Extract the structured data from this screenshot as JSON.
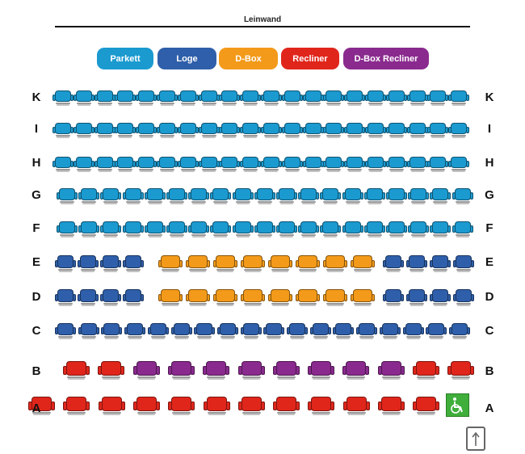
{
  "screen": {
    "label": "Leinwand"
  },
  "legend": [
    {
      "label": "Parkett",
      "color": "#1b9ad0"
    },
    {
      "label": "Loge",
      "color": "#2f5faa"
    },
    {
      "label": "D-Box",
      "color": "#f39a1a"
    },
    {
      "label": "Recliner",
      "color": "#e0261b"
    },
    {
      "label": "D-Box Recliner",
      "color": "#8a2a8e"
    }
  ],
  "rows": [
    {
      "label": "K",
      "seats": [
        "parkett",
        "parkett",
        "parkett",
        "parkett",
        "parkett",
        "parkett",
        "parkett",
        "parkett",
        "parkett",
        "parkett",
        "parkett",
        "parkett",
        "parkett",
        "parkett",
        "parkett",
        "parkett",
        "parkett",
        "parkett",
        "parkett",
        "parkett"
      ]
    },
    {
      "label": "I",
      "seats": [
        "parkett",
        "parkett",
        "parkett",
        "parkett",
        "parkett",
        "parkett",
        "parkett",
        "parkett",
        "parkett",
        "parkett",
        "parkett",
        "parkett",
        "parkett",
        "parkett",
        "parkett",
        "parkett",
        "parkett",
        "parkett",
        "parkett",
        "parkett"
      ]
    },
    {
      "label": "H",
      "seats": [
        "parkett",
        "parkett",
        "parkett",
        "parkett",
        "parkett",
        "parkett",
        "parkett",
        "parkett",
        "parkett",
        "parkett",
        "parkett",
        "parkett",
        "parkett",
        "parkett",
        "parkett",
        "parkett",
        "parkett",
        "parkett",
        "parkett",
        "parkett"
      ]
    },
    {
      "label": "G",
      "seats": [
        "parkett",
        "parkett",
        "parkett",
        "parkett",
        "parkett",
        "parkett",
        "parkett",
        "parkett",
        "parkett",
        "parkett",
        "parkett",
        "parkett",
        "parkett",
        "parkett",
        "parkett",
        "parkett",
        "parkett",
        "parkett",
        "parkett"
      ]
    },
    {
      "label": "F",
      "seats": [
        "parkett",
        "parkett",
        "parkett",
        "parkett",
        "parkett",
        "parkett",
        "parkett",
        "parkett",
        "parkett",
        "parkett",
        "parkett",
        "parkett",
        "parkett",
        "parkett",
        "parkett",
        "parkett",
        "parkett",
        "parkett",
        "parkett"
      ]
    },
    {
      "label": "E",
      "seats": [
        "loge",
        "loge",
        "loge",
        "loge",
        "dbox",
        "dbox",
        "dbox",
        "dbox",
        "dbox",
        "dbox",
        "dbox",
        "dbox",
        "loge",
        "loge",
        "loge",
        "loge"
      ]
    },
    {
      "label": "D",
      "seats": [
        "loge",
        "loge",
        "loge",
        "loge",
        "dbox",
        "dbox",
        "dbox",
        "dbox",
        "dbox",
        "dbox",
        "dbox",
        "dbox",
        "loge",
        "loge",
        "loge",
        "loge"
      ]
    },
    {
      "label": "C",
      "seats": [
        "loge",
        "loge",
        "loge",
        "loge",
        "loge",
        "loge",
        "loge",
        "loge",
        "loge",
        "loge",
        "loge",
        "loge",
        "loge",
        "loge",
        "loge",
        "loge",
        "loge",
        "loge"
      ]
    },
    {
      "label": "B",
      "seats": [
        "recliner",
        "recliner",
        "dboxrecliner",
        "dboxrecliner",
        "dboxrecliner",
        "dboxrecliner",
        "dboxrecliner",
        "dboxrecliner",
        "dboxrecliner",
        "dboxrecliner",
        "recliner",
        "recliner"
      ]
    },
    {
      "label": "A",
      "seats": [
        "recliner",
        "recliner",
        "recliner",
        "recliner",
        "recliner",
        "recliner",
        "recliner",
        "recliner",
        "recliner",
        "recliner",
        "recliner",
        "recliner",
        "wheelchair"
      ]
    }
  ],
  "icons": {
    "wheelchair": "wheelchair-icon",
    "upload": "upload-icon"
  }
}
